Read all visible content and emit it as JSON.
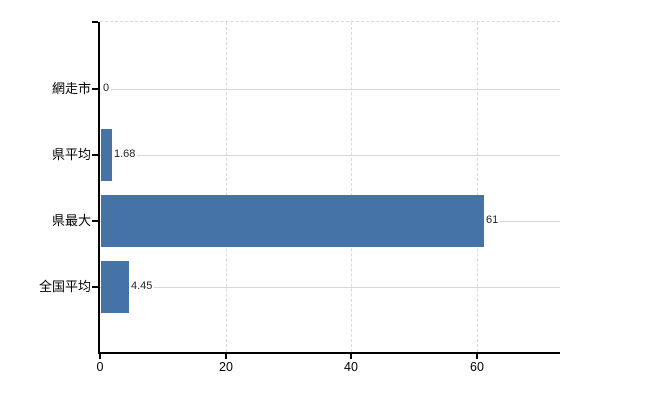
{
  "chart_data": {
    "type": "bar",
    "orientation": "horizontal",
    "title": "",
    "categories": [
      "網走市",
      "県平均",
      "県最大",
      "全国平均"
    ],
    "values": [
      0,
      1.68,
      61,
      4.45
    ],
    "value_labels": [
      "0",
      "1.68",
      "61",
      "4.45"
    ],
    "x_ticks": [
      0,
      20,
      40,
      60
    ],
    "x_tick_labels": [
      "0",
      "20",
      "40",
      "60"
    ],
    "xlim": [
      0,
      73.2
    ],
    "grid": true,
    "legend": false,
    "series_name": "値"
  },
  "colors": {
    "bar": "#4572a7",
    "axis": "#000000",
    "gridline_dashed": "#d9d9d9",
    "category_line": "#d6d6d6",
    "category_text": "#000000",
    "tick_text": "#000000",
    "value_text": "#222222",
    "background": "#ffffff"
  }
}
